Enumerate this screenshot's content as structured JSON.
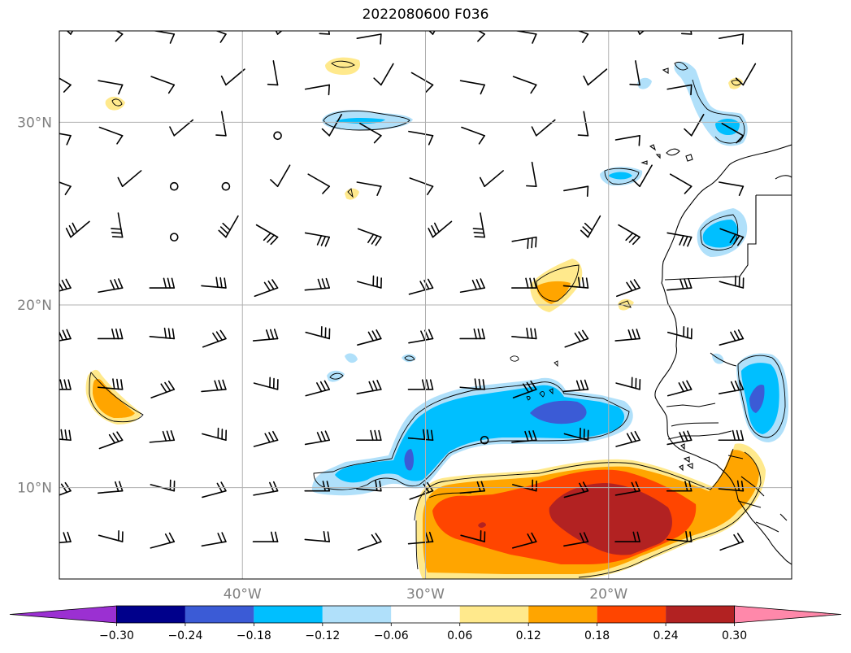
{
  "title": "2022080600 F036",
  "extent": {
    "lon": [
      -50,
      -10
    ],
    "lat": [
      5,
      35
    ]
  },
  "lat_ticks": [
    {
      "value": 30,
      "label": "30°N"
    },
    {
      "value": 20,
      "label": "20°N"
    },
    {
      "value": 10,
      "label": "10°N"
    }
  ],
  "lon_ticks": [
    {
      "value": -40,
      "label": "40°W"
    },
    {
      "value": -30,
      "label": "30°W"
    },
    {
      "value": -20,
      "label": "20°W"
    }
  ],
  "grid": true,
  "colorbar": {
    "levels": [
      -0.3,
      -0.24,
      -0.18,
      -0.12,
      -0.06,
      0.06,
      0.12,
      0.18,
      0.24,
      0.3
    ],
    "labels": [
      "−0.30",
      "−0.24",
      "−0.18",
      "−0.12",
      "−0.06",
      "0.06",
      "0.12",
      "0.18",
      "0.24",
      "0.30"
    ],
    "colors": [
      "#9b30d2",
      "#00008b",
      "#3b5bd6",
      "#00bfff",
      "#b0e0fa",
      "#ffffff",
      "#ffe98c",
      "#ffa500",
      "#ff4500",
      "#b22222",
      "#ff88aa"
    ],
    "extend": "both"
  }
}
